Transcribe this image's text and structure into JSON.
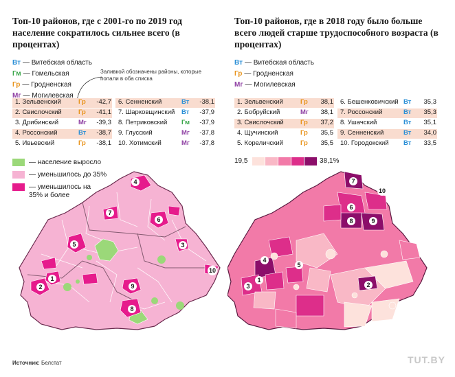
{
  "colors": {
    "Вт": "#2b8fd6",
    "Гм": "#3aa64a",
    "Гр": "#e8931b",
    "Мг": "#8e3fa3",
    "grew": "#9bd879",
    "lt35": "#f6b3d3",
    "ge35": "#e61b8c",
    "highlight": "#f9dccf",
    "scale": [
      "#fde2dc",
      "#f9b8c6",
      "#f27aa8",
      "#dd2e8a",
      "#8c0e6a"
    ]
  },
  "left": {
    "title": "Топ-10 районов, где с 2001-го по 2019 год население сократилось сильнее всего (в процентах)",
    "legend": [
      {
        "code": "Вт",
        "name": "— Витебская область"
      },
      {
        "code": "Гм",
        "name": "— Гомельская"
      },
      {
        "code": "Гр",
        "name": "— Гродненская"
      },
      {
        "code": "Мг",
        "name": "— Могилевская"
      }
    ],
    "callout": "Заливкой обозначены районы, которые попали в оба списка",
    "rows": [
      {
        "name": "1. Зельвенский",
        "code": "Гр",
        "value": "-42,7",
        "hl": true
      },
      {
        "name": "2. Свислочский",
        "code": "Гр",
        "value": "-41,1",
        "hl": true
      },
      {
        "name": "3. Дрибинский",
        "code": "Мг",
        "value": "-39,3",
        "hl": false
      },
      {
        "name": "4. Россонский",
        "code": "Вт",
        "value": "-38,7",
        "hl": true
      },
      {
        "name": "5. Ивьевский",
        "code": "Гр",
        "value": "-38,1",
        "hl": false
      },
      {
        "name": "6. Сенненский",
        "code": "Вт",
        "value": "-38,1",
        "hl": true
      },
      {
        "name": "7. Шарковщинский",
        "code": "Вт",
        "value": "-37,9",
        "hl": false
      },
      {
        "name": "8. Петриковский",
        "code": "Гм",
        "value": "-37,9",
        "hl": false
      },
      {
        "name": "9. Глусский",
        "code": "Мг",
        "value": "-37,8",
        "hl": false
      },
      {
        "name": "10. Хотимский",
        "code": "Мг",
        "value": "-37,8",
        "hl": false
      }
    ],
    "map_legend": [
      {
        "key": "grew",
        "label": "— население выросло"
      },
      {
        "key": "lt35",
        "label": "— уменьшилось до 35%"
      },
      {
        "key": "ge35",
        "label": "— уменьшилось на 35% и более"
      }
    ],
    "map_labels": [
      "1",
      "2",
      "3",
      "4",
      "5",
      "6",
      "7",
      "8",
      "9",
      "10"
    ]
  },
  "right": {
    "title": "Топ-10 районов, где в 2018 году было больше всего людей старше трудоспособного возраста (в процентах)",
    "legend": [
      {
        "code": "Вт",
        "name": "— Витебская область"
      },
      {
        "code": "Гр",
        "name": "— Гродненская"
      },
      {
        "code": "Мг",
        "name": "— Могилевская"
      }
    ],
    "rows": [
      {
        "name": "1. Зельвенский",
        "code": "Гр",
        "value": "38,1",
        "hl": true
      },
      {
        "name": "2. Бобруйский",
        "code": "Мг",
        "value": "38,1",
        "hl": false
      },
      {
        "name": "3. Свислочский",
        "code": "Гр",
        "value": "37,2",
        "hl": true
      },
      {
        "name": "4. Щучинский",
        "code": "Гр",
        "value": "35,5",
        "hl": false
      },
      {
        "name": "5. Кореличский",
        "code": "Гр",
        "value": "35,5",
        "hl": false
      },
      {
        "name": "6. Бешенковичский",
        "code": "Вт",
        "value": "35,3",
        "hl": false
      },
      {
        "name": "7. Россонский",
        "code": "Вт",
        "value": "35,3",
        "hl": true
      },
      {
        "name": "8. Ушачский",
        "code": "Вт",
        "value": "35,1",
        "hl": false
      },
      {
        "name": "9. Сенненский",
        "code": "Вт",
        "value": "34,0",
        "hl": true
      },
      {
        "name": "10. Городокский",
        "code": "Вт",
        "value": "33,5",
        "hl": false
      }
    ],
    "scale_min": "19,5",
    "scale_max": "38,1%",
    "map_labels": [
      "1",
      "2",
      "3",
      "4",
      "5",
      "6",
      "7",
      "8",
      "9",
      "10"
    ]
  },
  "chart_data": [
    {
      "type": "table",
      "title": "Топ-10 районов, где с 2001-го по 2019 год население сократилось сильнее всего (в процентах)",
      "categories": [
        "Зельвенский",
        "Свислочский",
        "Дрибинский",
        "Россонский",
        "Ивьевский",
        "Сенненский",
        "Шарковщинский",
        "Петриковский",
        "Глусский",
        "Хотимский"
      ],
      "values": [
        -42.7,
        -41.1,
        -39.3,
        -38.7,
        -38.1,
        -38.1,
        -37.9,
        -37.9,
        -37.8,
        -37.8
      ]
    },
    {
      "type": "table",
      "title": "Топ-10 районов, где в 2018 году было больше всего людей старше трудоспособного возраста (в процентах)",
      "categories": [
        "Зельвенский",
        "Бобруйский",
        "Свислочский",
        "Щучинский",
        "Кореличский",
        "Бешенковичский",
        "Россонский",
        "Ушачский",
        "Сенненский",
        "Городокский"
      ],
      "values": [
        38.1,
        38.1,
        37.2,
        35.5,
        35.5,
        35.3,
        35.3,
        35.1,
        34.0,
        33.5
      ],
      "range": [
        19.5,
        38.1
      ]
    }
  ],
  "footer": {
    "source_label": "Источник:",
    "source_value": "Белстат",
    "logo": "TUT.BY"
  }
}
